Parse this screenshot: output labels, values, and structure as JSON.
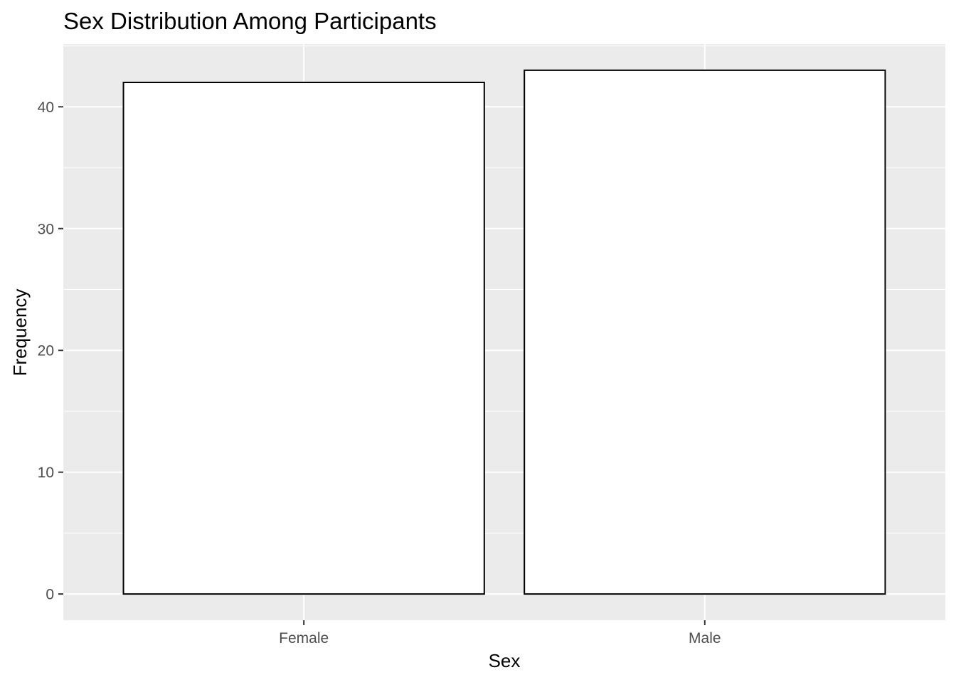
{
  "chart_data": {
    "type": "bar",
    "title": "Sex Distribution Among Participants",
    "xlabel": "Sex",
    "ylabel": "Frequency",
    "categories": [
      "Female",
      "Male"
    ],
    "values": [
      42,
      43
    ],
    "ylim": [
      -2.15,
      45.15
    ],
    "yticks": [
      0,
      10,
      20,
      30,
      40
    ],
    "grid": true,
    "legend": "none",
    "colors": {
      "panel_background": "#ebebeb",
      "grid_line": "#ffffff",
      "bar_fill": "#ffffff",
      "bar_outline": "#000000",
      "tick_text": "#4d4d4d",
      "tick_mark": "#333333"
    }
  }
}
